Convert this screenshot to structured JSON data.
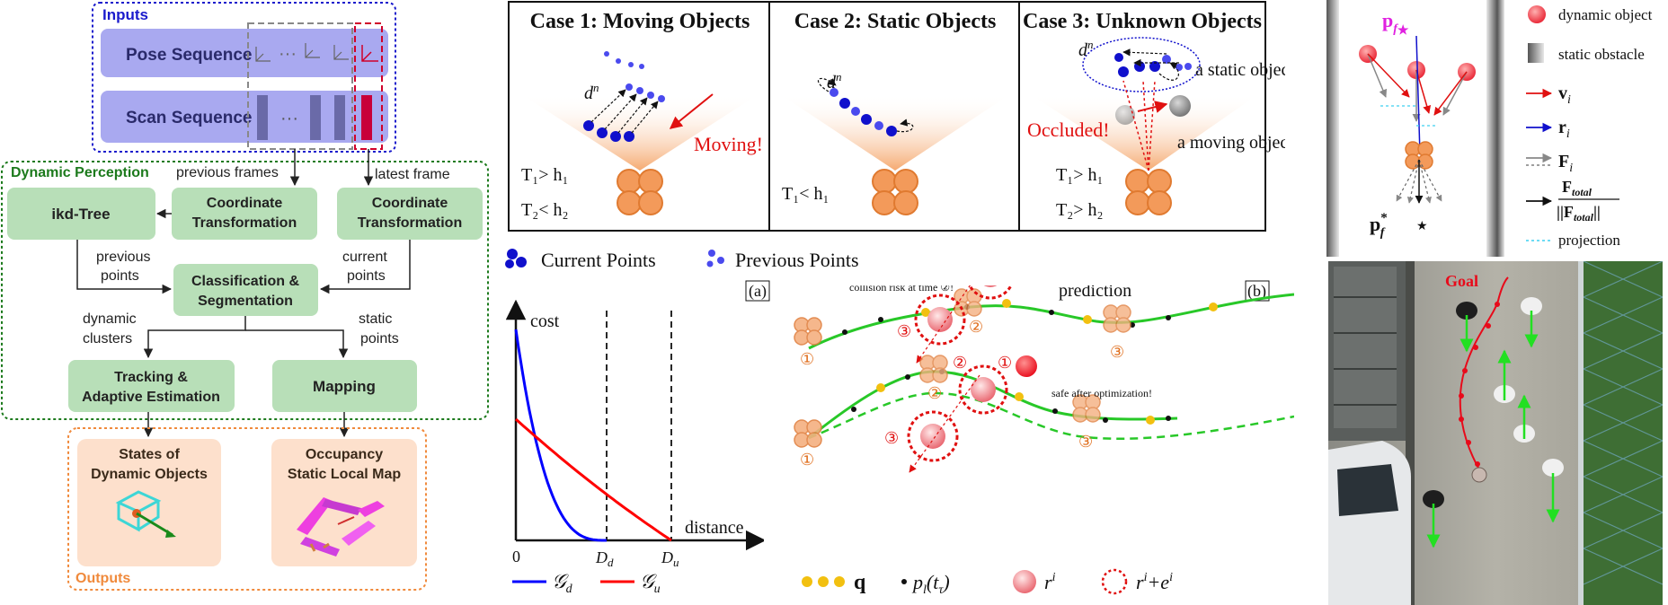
{
  "flow": {
    "inputs_label": "Inputs",
    "pose_sequence": "Pose Sequence",
    "scan_sequence": "Scan Sequence",
    "dots": "···",
    "dynamic_perception_label": "Dynamic Perception",
    "previous_frames": "previous frames",
    "latest_frame": "latest frame",
    "ikd_tree": "ikd-Tree",
    "coord_transform_line1": "Coordinate",
    "coord_transform_line2": "Transformation",
    "previous_points_line1": "previous",
    "previous_points_line2": "points",
    "current_points_line1": "current",
    "current_points_line2": "points",
    "classification_line1": "Classification &",
    "classification_line2": "Segmentation",
    "dynamic_clusters_line1": "dynamic",
    "dynamic_clusters_line2": "clusters",
    "static_points_line1": "static",
    "static_points_line2": "points",
    "tracking_line1": "Tracking &",
    "tracking_line2": "Adaptive Estimation",
    "mapping": "Mapping",
    "states_line1": "States of",
    "states_line2": "Dynamic Objects",
    "occupancy_line1": "Occupancy",
    "occupancy_line2": "Static Local Map",
    "outputs_label": "Outputs"
  },
  "cases": {
    "case1_title": "Case 1: Moving Objects",
    "case2_title": "Case 2: Static Objects",
    "case3_title": "Case 3: Unknown Objects",
    "dn": "d",
    "dn_sup": "n",
    "moving": "Moving!",
    "occluded": "Occluded!",
    "a_static_object": "a static object",
    "a_moving_object": "a moving object",
    "c1_cond1": "T₁> h₁",
    "c1_cond2": "T₂< h₂",
    "c2_cond1": "T₁< h₁",
    "c3_cond1": "T₁> h₁",
    "c3_cond2": "T₂> h₂",
    "current_points": "Current Points",
    "previous_points": "Previous Points",
    "panel_a": "(a)",
    "panel_b": "(b)"
  },
  "cost_chart": {
    "ylabel": "cost",
    "xlabel": "distance",
    "origin": "0",
    "dd_label": "D",
    "dd_sub": "d",
    "du_label": "D",
    "du_sub": "u",
    "legend_d": "𝒢",
    "legend_d_sub": "d",
    "legend_u": "𝒢",
    "legend_u_sub": "u",
    "colors": {
      "gd": "#0000ff",
      "gu": "#ff0000"
    }
  },
  "traj": {
    "collision_risk": "collision risk at time ②!",
    "prediction": "prediction",
    "safe_after": "safe after optimization!",
    "c1": "①",
    "c2": "②",
    "c3": "③",
    "legend_q": "q",
    "legend_pl": "p",
    "legend_pl_sub": "l",
    "legend_pl_arg": "(t",
    "legend_pl_tau": "τ",
    "legend_pl_end": ")",
    "legend_r": "r",
    "legend_r_sup": "i",
    "legend_re": "r",
    "legend_re_sup": "i",
    "legend_re_plus": "+e",
    "legend_re_sup2": "i"
  },
  "force": {
    "pf_star": "p",
    "pf_sub": "f",
    "pf_star_mark": "★",
    "pf_opt": "p",
    "pf_opt_sub": "f",
    "pf_opt_sup": "*",
    "legend_dynamic": "dynamic object",
    "legend_static": "static obstacle",
    "legend_v": "v",
    "legend_r": "r",
    "legend_F": "F",
    "legend_i": "i",
    "legend_Ftotal_num": "F",
    "legend_Ftotal_den": "||F",
    "legend_total": "total",
    "legend_den_end": "||",
    "legend_projection": "projection"
  },
  "photo": {
    "goal": "Goal"
  }
}
